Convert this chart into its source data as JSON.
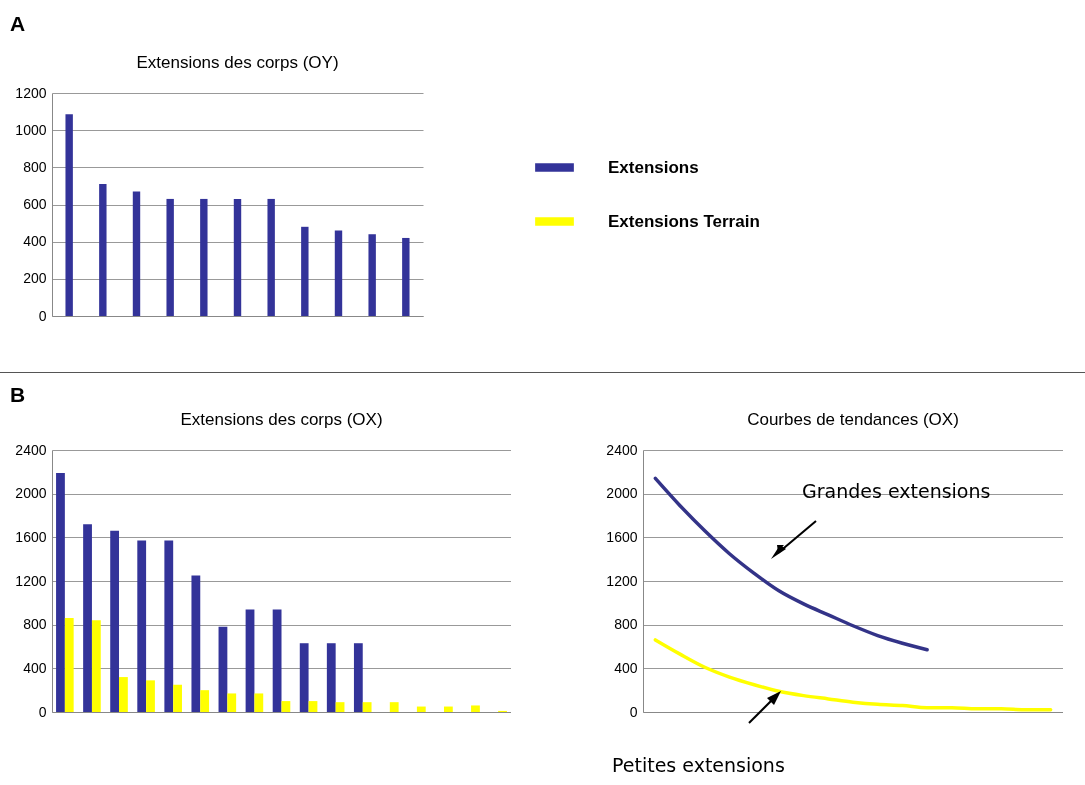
{
  "chart_data": [
    {
      "type": "bar",
      "title": "Extensions des corps (OY)",
      "annotations": [
        "A"
      ],
      "categories": [
        null,
        null,
        null,
        null,
        null,
        null,
        null,
        null,
        null,
        null,
        null
      ],
      "series": [
        {
          "name": "Extensions",
          "color": "#333399",
          "values": [
            1085,
            710,
            670,
            630,
            630,
            630,
            630,
            480,
            460,
            440,
            420
          ]
        },
        {
          "name": "Extensions Terrain",
          "color": "#ffff00",
          "values": [
            null,
            null,
            null,
            null,
            null,
            null,
            null,
            null,
            null,
            null,
            null
          ]
        }
      ],
      "ylim": [
        0,
        1200
      ],
      "yticks": [
        0,
        200,
        400,
        600,
        800,
        1000,
        1200
      ],
      "grid": "y",
      "legend": "right",
      "tick_labels": "y"
    },
    {
      "type": "bar",
      "title": "Extensions des corps (OX)",
      "annotations": [
        "B"
      ],
      "categories": [
        null,
        null,
        null,
        null,
        null,
        null,
        null,
        null,
        null,
        null,
        null,
        null,
        null,
        null,
        null,
        null,
        null
      ],
      "series": [
        {
          "color": "#333399",
          "values": [
            2190,
            1720,
            1660,
            1570,
            1570,
            1250,
            780,
            940,
            940,
            630,
            630,
            630,
            null,
            null,
            null,
            null,
            null
          ]
        },
        {
          "color": "#ffff00",
          "values": [
            860,
            840,
            320,
            290,
            250,
            200,
            170,
            170,
            100,
            100,
            90,
            90,
            90,
            50,
            50,
            60,
            10
          ]
        }
      ],
      "ylim": [
        0,
        2400
      ],
      "yticks": [
        0,
        400,
        800,
        1200,
        1600,
        2000,
        2400
      ],
      "grid": "y",
      "tick_labels": "y"
    },
    {
      "type": "line",
      "title": "Courbes de tendances (OX)",
      "annotations": [
        "Grandes extensions",
        "Petites extensions"
      ],
      "categories": [
        null,
        null,
        null,
        null,
        null,
        null,
        null,
        null,
        null,
        null,
        null,
        null,
        null,
        null,
        null,
        null,
        null
      ],
      "series": [
        {
          "color": "#333388",
          "values": [
            2140,
            1890,
            1660,
            1450,
            1270,
            1110,
            990,
            890,
            790,
            700,
            630,
            570,
            null,
            null,
            null,
            null,
            null
          ]
        },
        {
          "color": "#ffff00",
          "values": [
            660,
            530,
            410,
            320,
            250,
            190,
            150,
            120,
            90,
            70,
            60,
            40,
            40,
            30,
            30,
            20,
            20
          ]
        }
      ],
      "ylim": [
        0,
        2400
      ],
      "yticks": [
        0,
        400,
        800,
        1200,
        1600,
        2000,
        2400
      ],
      "grid": "y",
      "tick_labels": "y"
    }
  ]
}
